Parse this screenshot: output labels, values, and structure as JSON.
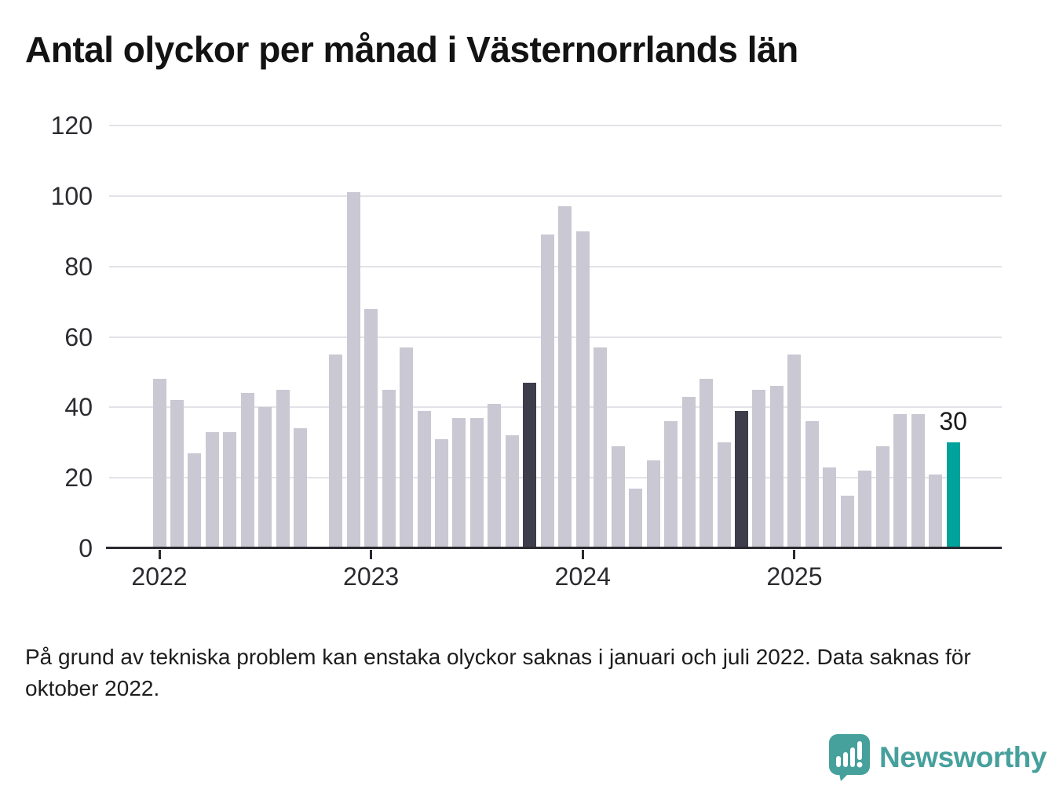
{
  "title": "Antal olyckor per månad i Västernorrlands län",
  "footnote": {
    "line1": "På grund av tekniska problem kan enstaka olyckor saknas i januari och juli 2022. Data saknas för",
    "line2": "oktober 2022."
  },
  "logo": {
    "text": "Newsworthy"
  },
  "chart_data": {
    "type": "bar",
    "title": "Antal olyckor per månad i Västernorrlands län",
    "xlabel": "",
    "ylabel": "",
    "ylim": [
      0,
      120
    ],
    "y_ticks": [
      0,
      20,
      40,
      60,
      80,
      100,
      120
    ],
    "x_tick_labels": [
      "2022",
      "2023",
      "2024",
      "2025"
    ],
    "x_tick_month_indices": [
      0,
      12,
      24,
      36
    ],
    "grid": "horizontal",
    "legend": "none",
    "annotation_label": "30",
    "colors": {
      "normal": "#c9c8d3",
      "highlight_dark": "#3e3d4b",
      "highlight_current": "#00a39b",
      "axis": "#2a2930",
      "gridline": "#e3e2e8",
      "logo_teal": "#46a09c"
    },
    "series": [
      {
        "name": "Antal olyckor per månad",
        "points": [
          {
            "month": "2022-01",
            "value": 48
          },
          {
            "month": "2022-02",
            "value": 42
          },
          {
            "month": "2022-03",
            "value": 27
          },
          {
            "month": "2022-04",
            "value": 33
          },
          {
            "month": "2022-05",
            "value": 33
          },
          {
            "month": "2022-06",
            "value": 44
          },
          {
            "month": "2022-07",
            "value": 40
          },
          {
            "month": "2022-08",
            "value": 45
          },
          {
            "month": "2022-09",
            "value": 34
          },
          {
            "month": "2022-10",
            "value": null
          },
          {
            "month": "2022-11",
            "value": 55
          },
          {
            "month": "2022-12",
            "value": 101
          },
          {
            "month": "2023-01",
            "value": 68
          },
          {
            "month": "2023-02",
            "value": 45
          },
          {
            "month": "2023-03",
            "value": 57
          },
          {
            "month": "2023-04",
            "value": 39
          },
          {
            "month": "2023-05",
            "value": 31
          },
          {
            "month": "2023-06",
            "value": 37
          },
          {
            "month": "2023-07",
            "value": 37
          },
          {
            "month": "2023-08",
            "value": 41
          },
          {
            "month": "2023-09",
            "value": 32
          },
          {
            "month": "2023-10",
            "value": 47,
            "highlight": "dark"
          },
          {
            "month": "2023-11",
            "value": 89
          },
          {
            "month": "2023-12",
            "value": 97
          },
          {
            "month": "2024-01",
            "value": 90
          },
          {
            "month": "2024-02",
            "value": 57
          },
          {
            "month": "2024-03",
            "value": 29
          },
          {
            "month": "2024-04",
            "value": 17
          },
          {
            "month": "2024-05",
            "value": 25
          },
          {
            "month": "2024-06",
            "value": 36
          },
          {
            "month": "2024-07",
            "value": 43
          },
          {
            "month": "2024-08",
            "value": 48
          },
          {
            "month": "2024-09",
            "value": 30
          },
          {
            "month": "2024-10",
            "value": 39,
            "highlight": "dark"
          },
          {
            "month": "2024-11",
            "value": 45
          },
          {
            "month": "2024-12",
            "value": 46
          },
          {
            "month": "2025-01",
            "value": 55
          },
          {
            "month": "2025-02",
            "value": 36
          },
          {
            "month": "2025-03",
            "value": 23
          },
          {
            "month": "2025-04",
            "value": 15
          },
          {
            "month": "2025-05",
            "value": 22
          },
          {
            "month": "2025-06",
            "value": 29
          },
          {
            "month": "2025-07",
            "value": 38
          },
          {
            "month": "2025-08",
            "value": 38
          },
          {
            "month": "2025-09",
            "value": 21
          },
          {
            "month": "2025-10",
            "value": 30,
            "highlight": "current",
            "label": "30"
          }
        ]
      }
    ]
  }
}
